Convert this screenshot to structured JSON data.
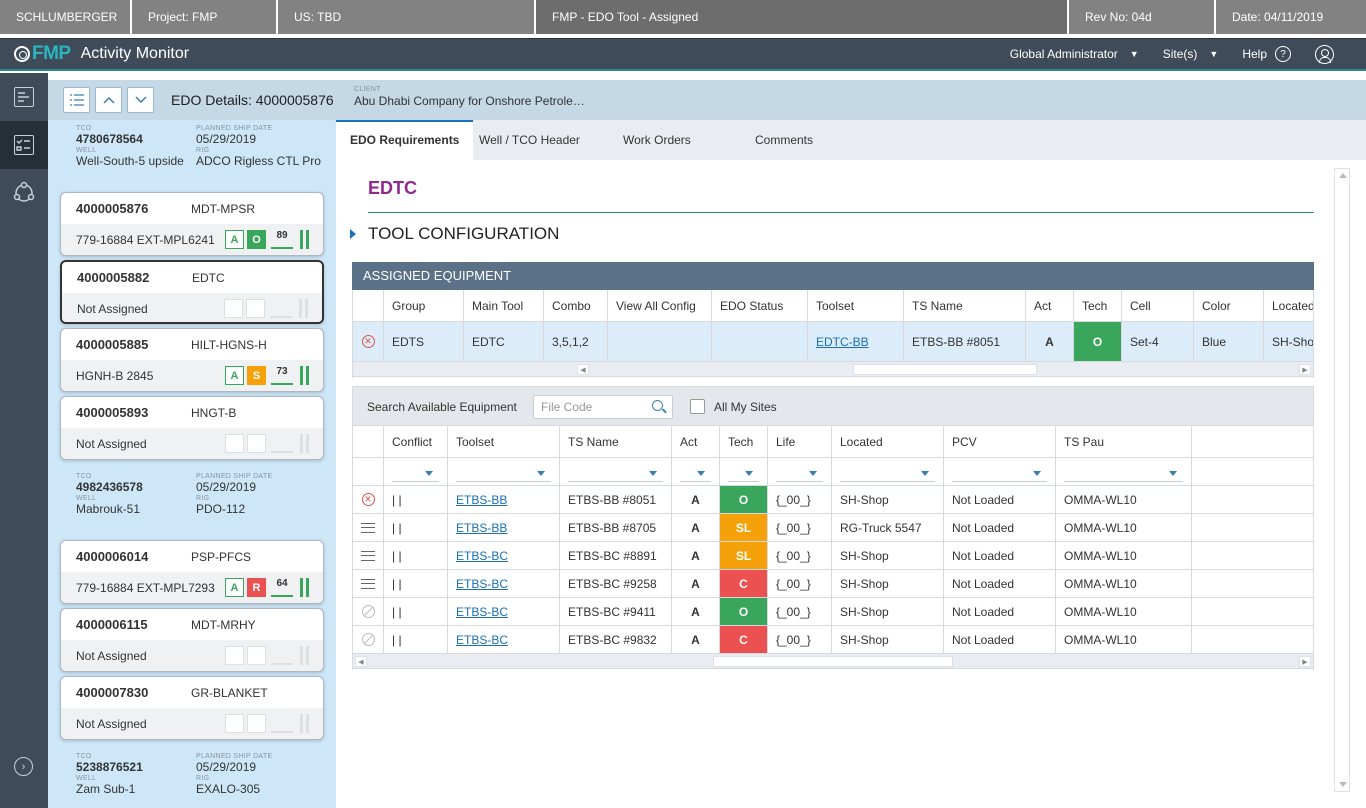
{
  "topbar": {
    "company": "SCHLUMBERGER",
    "project": "Project:  FMP",
    "us": "US:  TBD",
    "context": "FMP - EDO Tool - Assigned",
    "rev": "Rev No:  04d",
    "date": "Date:  04/11/2019"
  },
  "app": {
    "logo": "FMP",
    "title": "Activity Monitor",
    "role": "Global Administrator",
    "sites": "Site(s)",
    "help": "Help",
    "help_icon": "?"
  },
  "header": {
    "edo_title": "EDO Details: 4000005876",
    "client_label": "CLIENT",
    "client_value": "Abu Dhabi Company for Onshore Petrole…"
  },
  "groups": [
    {
      "tco_label": "TCO",
      "tco": "4780678564",
      "date_label": "PLANNED SHIP DATE",
      "date": "05/29/2019",
      "well_label": "WELL",
      "well": "Well-South-5 upside",
      "rig_label": "RIG",
      "rig": "ADCO Rigless CTL Pro"
    },
    {
      "tco_label": "TCO",
      "tco": "4982436578",
      "date_label": "PLANNED SHIP DATE",
      "date": "05/29/2019",
      "well_label": "WELL",
      "well": "Mabrouk-51",
      "rig_label": "RIG",
      "rig": "PDO-112"
    },
    {
      "tco_label": "TCO",
      "tco": "5238876521",
      "date_label": "PLANNED SHIP DATE",
      "date": "05/29/2019",
      "well_label": "WELL",
      "well": "Zam Sub-1",
      "rig_label": "RIG",
      "rig": "EXALO-305"
    }
  ],
  "cards": [
    {
      "num": "4000005876",
      "code": "MDT-MPSR",
      "assign": "779-16884 EXT-MPL6241",
      "b1": "A",
      "b2": "O",
      "score": "89"
    },
    {
      "num": "4000005882",
      "code": "EDTC",
      "assign": "Not Assigned"
    },
    {
      "num": "4000005885",
      "code": "HILT-HGNS-H",
      "assign": "HGNH-B 2845",
      "b1": "A",
      "b2": "S",
      "score": "73"
    },
    {
      "num": "4000005893",
      "code": "HNGT-B",
      "assign": "Not Assigned"
    },
    {
      "num": "4000006014",
      "code": "PSP-PFCS",
      "assign": "779-16884 EXT-MPL7293",
      "b1": "A",
      "b2": "R",
      "score": "64"
    },
    {
      "num": "4000006115",
      "code": "MDT-MRHY",
      "assign": "Not Assigned"
    },
    {
      "num": "4000007830",
      "code": "GR-BLANKET",
      "assign": "Not Assigned"
    }
  ],
  "tabs": [
    "EDO Requirements",
    "Well / TCO Header",
    "Work Orders",
    "Comments"
  ],
  "section": {
    "title": "EDTC",
    "tool_config": "TOOL CONFIGURATION",
    "assigned_title": "ASSIGNED EQUIPMENT"
  },
  "assigned": {
    "headers": [
      "Group",
      "Main Tool",
      "Combo",
      "View All Config",
      "EDO Status",
      "Toolset",
      "TS Name",
      "Act",
      "Tech",
      "Cell",
      "Color",
      "Located"
    ],
    "row": {
      "group": "EDTS",
      "main_tool": "EDTC",
      "combo": "3,5,1,2",
      "view_all": "",
      "edo_status": "",
      "toolset": "EDTC-BB",
      "ts_name": "ETBS-BB #8051",
      "act": "A",
      "tech": "O",
      "cell": "Set-4",
      "color": "Blue",
      "located": "SH-Shop"
    }
  },
  "search": {
    "label": "Search Available Equipment",
    "placeholder": "File Code",
    "all_sites": "All My Sites"
  },
  "available": {
    "headers": [
      "Conflict",
      "Toolset",
      "TS Name",
      "Act",
      "Tech",
      "Life",
      "Located",
      "PCV",
      "TS Pau"
    ],
    "rows": [
      {
        "icon": "x",
        "conflict": "| |",
        "toolset": "ETBS-BB",
        "ts_name": "ETBS-BB #8051",
        "act": "A",
        "tech": "O",
        "life": "{_00_}",
        "located": "SH-Shop",
        "pcv": "Not Loaded",
        "ts_pau": "OMMA-WL10"
      },
      {
        "icon": "menu",
        "conflict": "| |",
        "toolset": "ETBS-BB",
        "ts_name": "ETBS-BB #8705",
        "act": "A",
        "tech": "SL",
        "life": "{_00_}",
        "located": "RG-Truck 5547",
        "pcv": "Not Loaded",
        "ts_pau": "OMMA-WL10"
      },
      {
        "icon": "menu",
        "conflict": "| |",
        "toolset": "ETBS-BC",
        "ts_name": "ETBS-BC #8891",
        "act": "A",
        "tech": "SL",
        "life": "{_00_}",
        "located": "SH-Shop",
        "pcv": "Not Loaded",
        "ts_pau": "OMMA-WL10"
      },
      {
        "icon": "menu",
        "conflict": "| |",
        "toolset": "ETBS-BC",
        "ts_name": "ETBS-BC #9258",
        "act": "A",
        "tech": "C",
        "life": "{_00_}",
        "located": "SH-Shop",
        "pcv": "Not Loaded",
        "ts_pau": "OMMA-WL10"
      },
      {
        "icon": "ban",
        "conflict": "| |",
        "toolset": "ETBS-BC",
        "ts_name": "ETBS-BC #9411",
        "act": "A",
        "tech": "O",
        "life": "{_00_}",
        "located": "SH-Shop",
        "pcv": "Not Loaded",
        "ts_pau": "OMMA-WL10"
      },
      {
        "icon": "ban",
        "conflict": "| |",
        "toolset": "ETBS-BC",
        "ts_name": "ETBS-BC #9832",
        "act": "A",
        "tech": "C",
        "life": "{_00_}",
        "located": "SH-Shop",
        "pcv": "Not Loaded",
        "ts_pau": "OMMA-WL10"
      }
    ]
  },
  "icons": {
    "x": "close-circle-icon",
    "menu": "hamburger-icon",
    "ban": "ban-icon"
  },
  "colors": {
    "accent": "#1a6fb8",
    "green": "#3aa65b",
    "orange": "#f5a20a",
    "red": "#ec5151",
    "title": "#8e2a8e"
  }
}
